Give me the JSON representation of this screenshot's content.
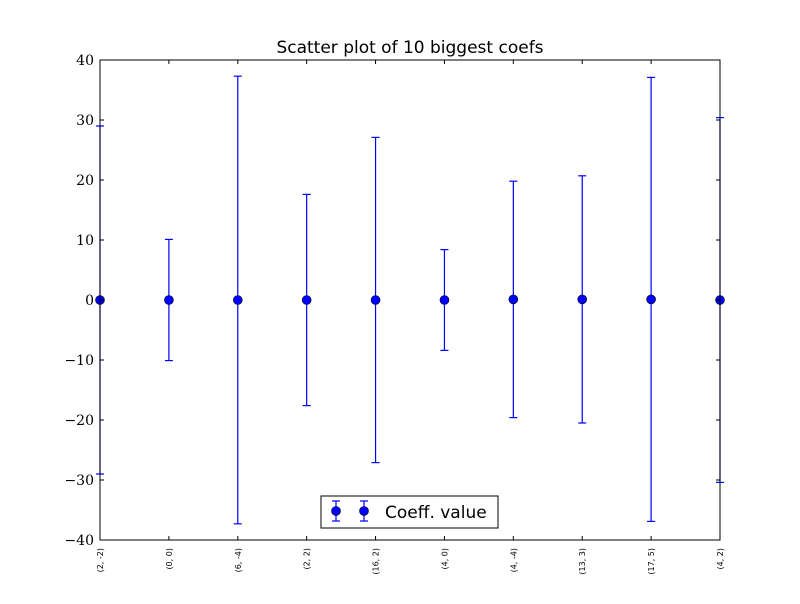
{
  "chart_data": {
    "type": "scatter",
    "title": "Scatter plot of 10 biggest coefs",
    "xlabel": "",
    "ylabel": "",
    "ylim": [
      -40,
      40
    ],
    "yticks": [
      40,
      30,
      20,
      10,
      0,
      -10,
      -20,
      -30,
      -40
    ],
    "ytick_labels": [
      "40",
      "30",
      "20",
      "10",
      "0",
      "−10",
      "−20",
      "−30",
      "−40"
    ],
    "categories": [
      "(2, -2)",
      "(0, 0)",
      "(6, -4)",
      "(2, 2)",
      "(16, 2)",
      "(4, 0)",
      "(4, -4)",
      "(13, 3)",
      "(17, 5)",
      "(4, 2)"
    ],
    "series": [
      {
        "name": "Coeff. value",
        "color": "#0000ff",
        "values": [
          0,
          0,
          0,
          0,
          0,
          0,
          0.1,
          0.1,
          0.1,
          0
        ],
        "errors": [
          29,
          10.1,
          37.3,
          17.6,
          27.1,
          8.4,
          19.7,
          20.6,
          37.0,
          30.4
        ]
      }
    ],
    "grid": false,
    "legend_position": "lower-center"
  }
}
